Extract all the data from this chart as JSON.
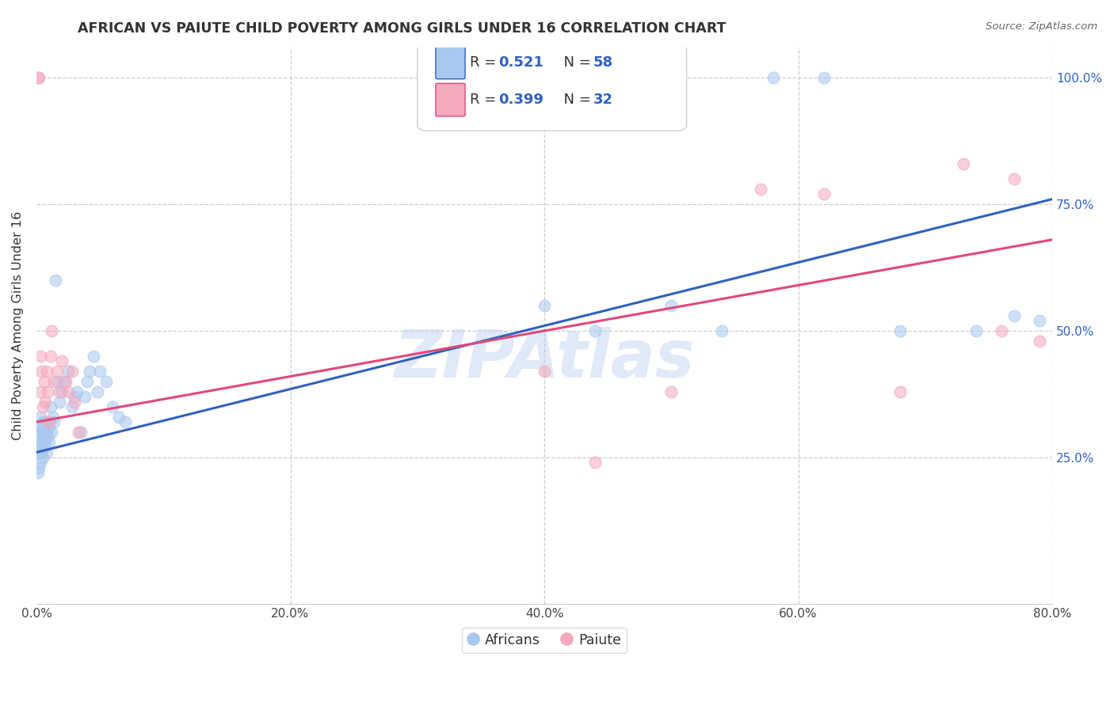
{
  "title": "AFRICAN VS PAIUTE CHILD POVERTY AMONG GIRLS UNDER 16 CORRELATION CHART",
  "source": "Source: ZipAtlas.com",
  "ylabel": "Child Poverty Among Girls Under 16",
  "watermark": "ZIPAtlas",
  "african_color": "#a8c8f0",
  "paiute_color": "#f4a8bc",
  "african_line_color": "#3060c0",
  "paiute_line_color": "#e04878",
  "title_color": "#333333",
  "source_color": "#666666",
  "grid_color": "#cccccc",
  "legend1_r": "0.521",
  "legend1_n": "58",
  "legend2_r": "0.399",
  "legend2_n": "32",
  "xlim": [
    0.0,
    0.8
  ],
  "ylim": [
    -0.04,
    1.06
  ],
  "africans_x": [
    0.001,
    0.001,
    0.002,
    0.002,
    0.002,
    0.003,
    0.003,
    0.003,
    0.003,
    0.004,
    0.004,
    0.004,
    0.005,
    0.005,
    0.005,
    0.006,
    0.006,
    0.007,
    0.007,
    0.008,
    0.008,
    0.009,
    0.01,
    0.01,
    0.011,
    0.012,
    0.013,
    0.014,
    0.015,
    0.016,
    0.018,
    0.02,
    0.022,
    0.025,
    0.028,
    0.03,
    0.032,
    0.035,
    0.038,
    0.04,
    0.042,
    0.045,
    0.048,
    0.05,
    0.055,
    0.06,
    0.065,
    0.07,
    0.4,
    0.44,
    0.5,
    0.54,
    0.58,
    0.62,
    0.68,
    0.74,
    0.77,
    0.79
  ],
  "africans_y": [
    0.22,
    0.26,
    0.23,
    0.28,
    0.3,
    0.24,
    0.27,
    0.31,
    0.33,
    0.26,
    0.3,
    0.28,
    0.25,
    0.29,
    0.32,
    0.27,
    0.3,
    0.28,
    0.32,
    0.26,
    0.3,
    0.29,
    0.31,
    0.28,
    0.35,
    0.3,
    0.33,
    0.32,
    0.6,
    0.4,
    0.36,
    0.38,
    0.4,
    0.42,
    0.35,
    0.37,
    0.38,
    0.3,
    0.37,
    0.4,
    0.42,
    0.45,
    0.38,
    0.42,
    0.4,
    0.35,
    0.33,
    0.32,
    0.55,
    0.5,
    0.55,
    0.5,
    1.0,
    1.0,
    0.5,
    0.5,
    0.53,
    0.52
  ],
  "paiute_x": [
    0.001,
    0.002,
    0.003,
    0.003,
    0.004,
    0.005,
    0.006,
    0.007,
    0.008,
    0.009,
    0.01,
    0.011,
    0.012,
    0.014,
    0.016,
    0.018,
    0.02,
    0.023,
    0.025,
    0.028,
    0.03,
    0.033,
    0.4,
    0.44,
    0.5,
    0.57,
    0.62,
    0.68,
    0.73,
    0.76,
    0.77,
    0.79
  ],
  "paiute_y": [
    1.0,
    1.0,
    0.38,
    0.45,
    0.42,
    0.35,
    0.4,
    0.36,
    0.42,
    0.38,
    0.32,
    0.45,
    0.5,
    0.4,
    0.42,
    0.38,
    0.44,
    0.4,
    0.38,
    0.42,
    0.36,
    0.3,
    0.42,
    0.24,
    0.38,
    0.78,
    0.77,
    0.38,
    0.83,
    0.5,
    0.8,
    0.48
  ],
  "african_line_x": [
    0.0,
    0.8
  ],
  "african_line_y": [
    0.26,
    0.76
  ],
  "paiute_line_x": [
    0.0,
    0.8
  ],
  "paiute_line_y": [
    0.32,
    0.68
  ]
}
